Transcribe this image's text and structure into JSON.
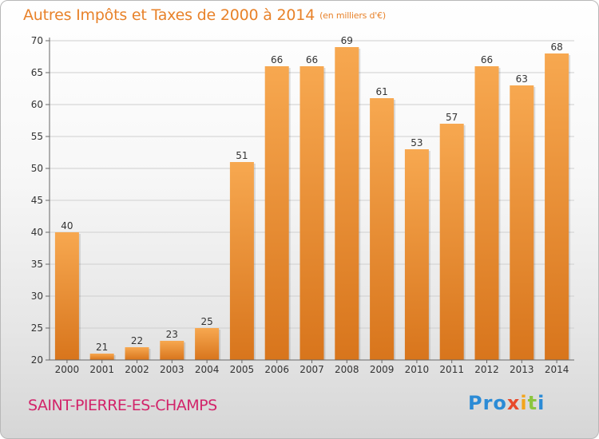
{
  "header": {
    "title": "Autres Impôts et Taxes de 2000 à 2014",
    "unit": "(en milliers d'€)"
  },
  "footer": {
    "city": "SAINT-PIERRE-ES-CHAMPS",
    "logo_parts": [
      "Pro",
      "x",
      "i",
      "t",
      "i"
    ]
  },
  "colors": {
    "bar_top": "#f7a850",
    "bar_bottom": "#d8751c",
    "title": "#e8822a",
    "city": "#d2246a"
  },
  "chart_data": {
    "type": "bar",
    "categories": [
      "2000",
      "2001",
      "2002",
      "2003",
      "2004",
      "2005",
      "2006",
      "2007",
      "2008",
      "2009",
      "2010",
      "2011",
      "2012",
      "2013",
      "2014"
    ],
    "values": [
      40,
      21,
      22,
      23,
      25,
      51,
      66,
      66,
      69,
      61,
      53,
      57,
      66,
      63,
      68
    ],
    "ylim": [
      20,
      70
    ],
    "yticks": [
      20,
      25,
      30,
      35,
      40,
      45,
      50,
      55,
      60,
      65,
      70
    ],
    "grid": "horizontal",
    "data_labels": true
  }
}
